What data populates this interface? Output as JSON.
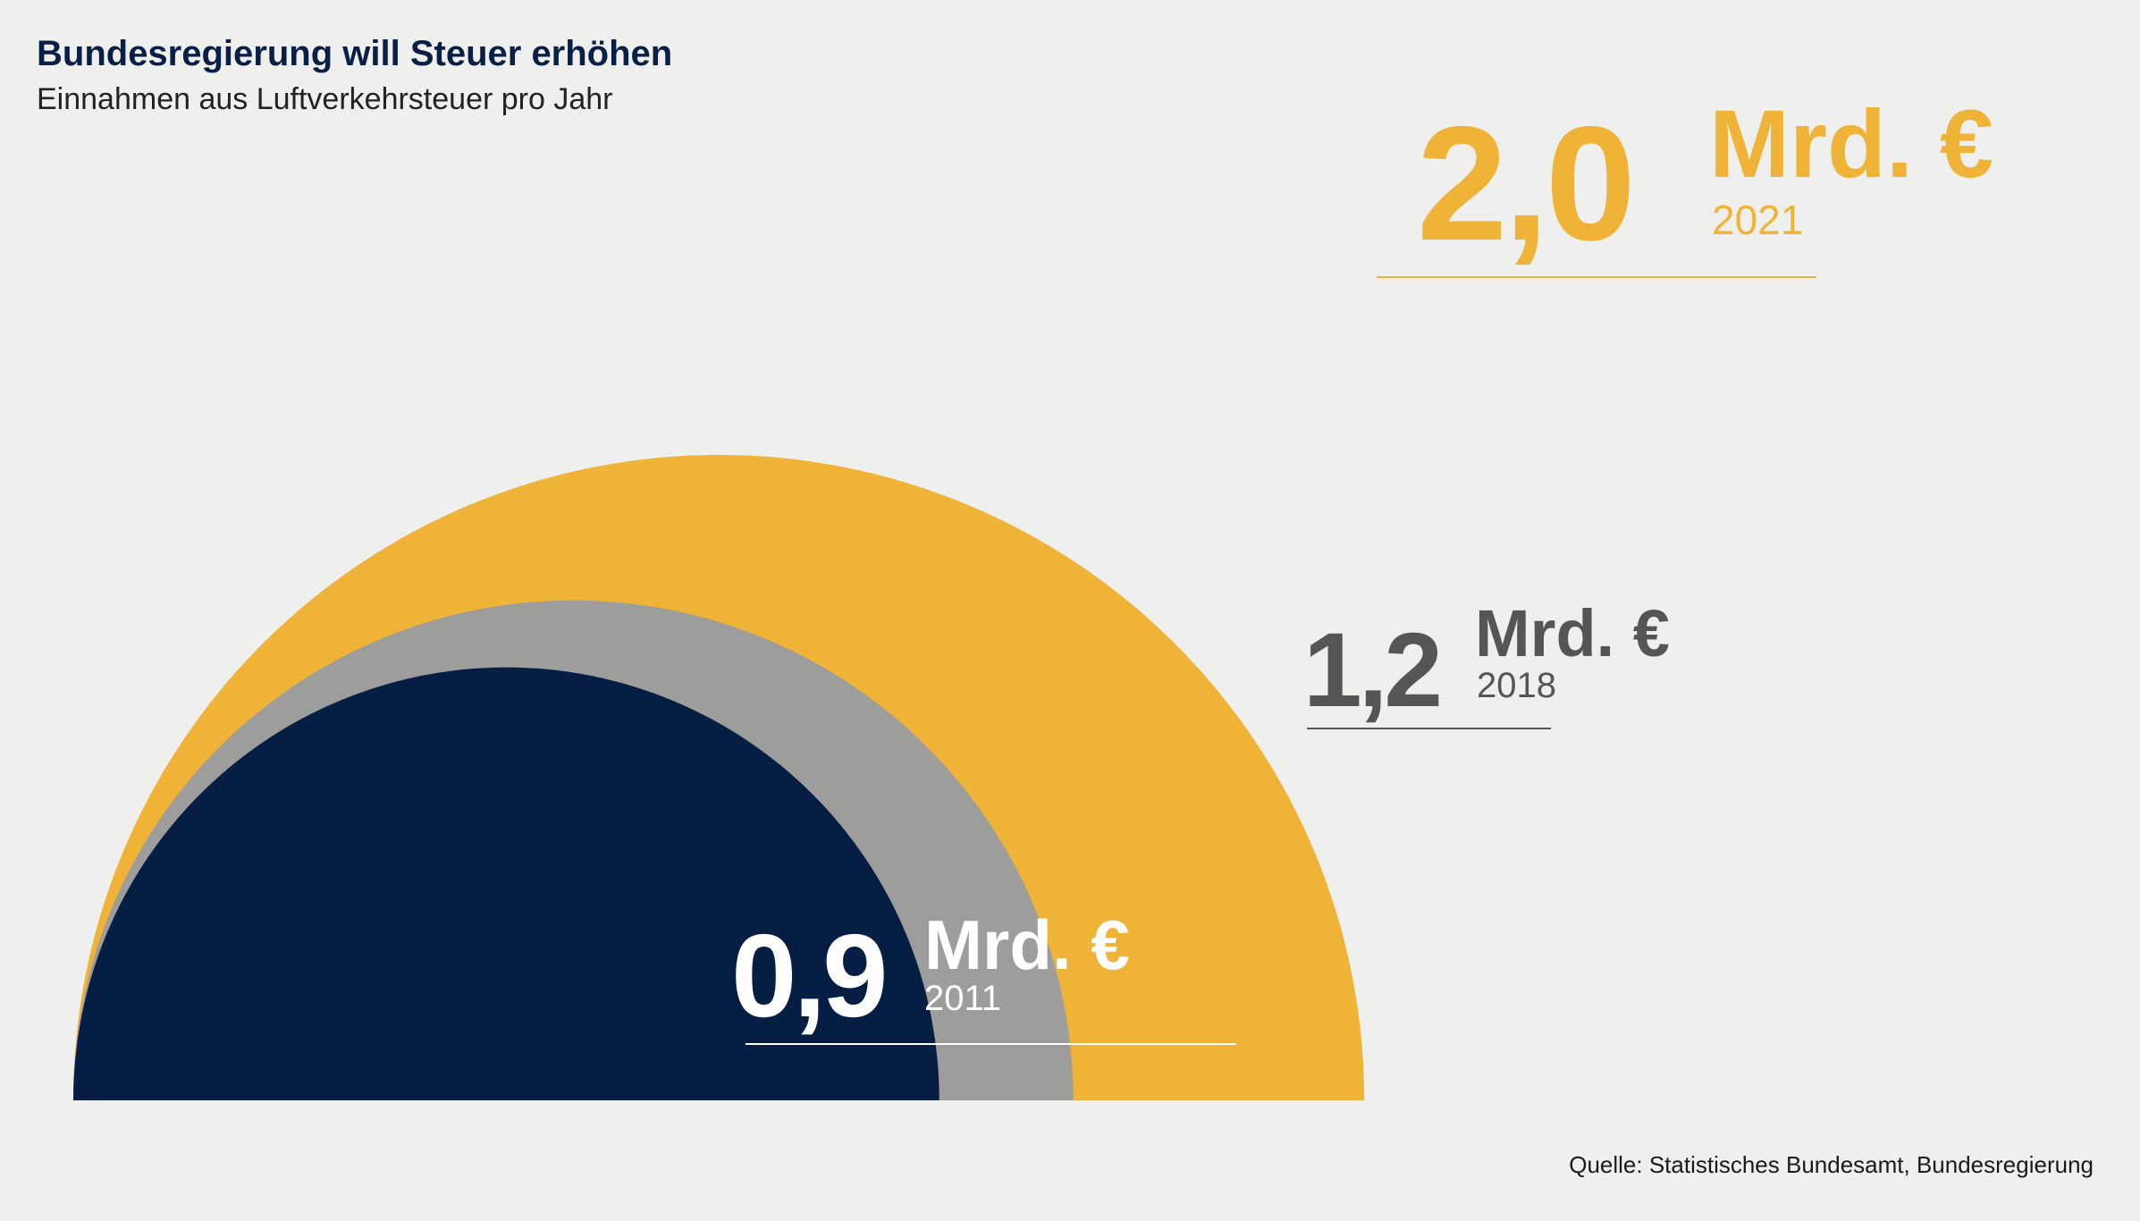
{
  "header": {
    "title": "Bundesregierung will Steuer erhöhen",
    "subtitle": "Einnahmen aus Luftverkehrsteuer pro Jahr"
  },
  "footer": {
    "source": "Quelle: Statistisches Bundesamt, Bundesregierung"
  },
  "chart_data": {
    "type": "semicircle-area",
    "title": "Bundesregierung will Steuer erhöhen",
    "subtitle": "Einnahmen aus Luftverkehrsteuer pro Jahr",
    "unit": "Mrd. €",
    "series": [
      {
        "year": "2021",
        "value": 2.0,
        "label": "2,0",
        "color": "#eeb337",
        "text_color": "#eeb337"
      },
      {
        "year": "2018",
        "value": 1.2,
        "label": "1,2",
        "color": "#9d9d9b",
        "text_color": "#555555"
      },
      {
        "year": "2011",
        "value": 0.9,
        "label": "0,9",
        "color": "#061e44",
        "text_color": "#ffffff"
      }
    ]
  },
  "colors": {
    "background": "#efefed",
    "title": "#0a1f45"
  }
}
